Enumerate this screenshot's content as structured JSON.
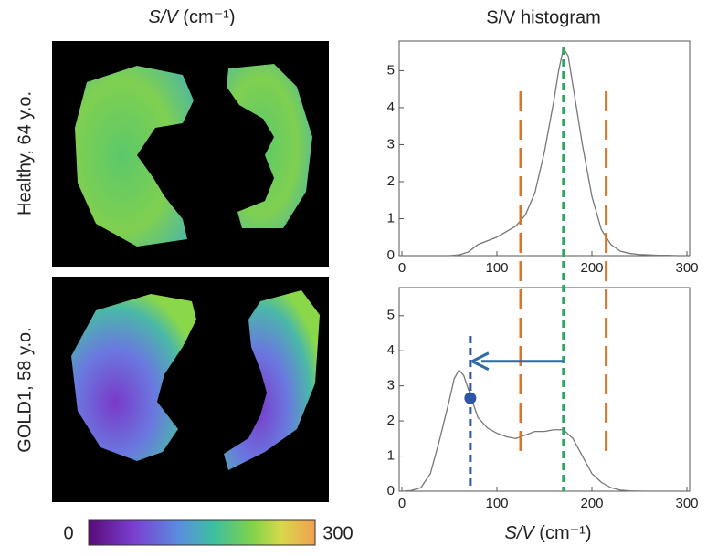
{
  "left_title": {
    "italic": "S/V",
    "unit": "(cm⁻¹)"
  },
  "right_title": "S/V histogram",
  "row_labels": [
    "Healthy, 64 y.o.",
    "GOLD1, 58 y.o."
  ],
  "colorbar": {
    "ticks": [
      0,
      300
    ]
  },
  "x_axis_label": {
    "italic": "S/V",
    "unit": "(cm⁻¹)"
  },
  "chart_data": [
    {
      "type": "line",
      "color": "#777777",
      "x": [
        50,
        60,
        70,
        80,
        90,
        100,
        110,
        120,
        130,
        140,
        150,
        160,
        165,
        170,
        175,
        180,
        190,
        200,
        210,
        220,
        230,
        240,
        250,
        260,
        270,
        280,
        290
      ],
      "values": [
        0,
        0.02,
        0.1,
        0.3,
        0.4,
        0.5,
        0.65,
        0.8,
        1.1,
        1.7,
        2.8,
        4.2,
        5.0,
        5.6,
        5.4,
        4.6,
        3.0,
        1.6,
        0.7,
        0.3,
        0.12,
        0.06,
        0.03,
        0.02,
        0.01,
        0.01,
        0
      ],
      "xlim": [
        0,
        300
      ],
      "xticks": [
        0,
        100,
        200,
        300
      ],
      "ylim": [
        0,
        5.8
      ],
      "yticks": [
        0,
        1,
        2,
        3,
        4,
        5
      ]
    },
    {
      "type": "line",
      "color": "#777777",
      "x": [
        0,
        10,
        20,
        30,
        40,
        50,
        55,
        60,
        65,
        70,
        75,
        80,
        90,
        100,
        110,
        120,
        130,
        140,
        150,
        160,
        170,
        180,
        190,
        200,
        210,
        220,
        230,
        240,
        260,
        290
      ],
      "values": [
        0,
        0.02,
        0.1,
        0.5,
        1.5,
        2.6,
        3.2,
        3.45,
        3.3,
        2.9,
        2.5,
        2.1,
        1.8,
        1.65,
        1.55,
        1.5,
        1.6,
        1.7,
        1.7,
        1.75,
        1.75,
        1.5,
        1.0,
        0.5,
        0.25,
        0.1,
        0.03,
        0.01,
        0,
        0
      ],
      "xlim": [
        0,
        300
      ],
      "xticks": [
        0,
        100,
        200,
        300
      ],
      "ylim": [
        0,
        5.8
      ],
      "yticks": [
        0,
        1,
        2,
        3,
        4,
        5
      ]
    }
  ],
  "annotations": {
    "orange_lines": [
      125,
      215
    ],
    "green_line": 170,
    "blue_line": 72,
    "arrow_y": 3.7,
    "dot": [
      72,
      2.65
    ]
  }
}
